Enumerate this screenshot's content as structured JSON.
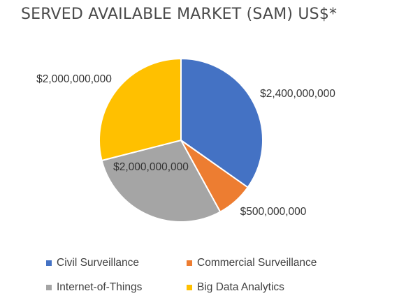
{
  "chart_data": {
    "type": "pie",
    "title": "SERVED AVAILABLE MARKET (SAM) US$*",
    "categories": [
      "Civil Surveillance",
      "Commercial Surveillance",
      "Internet-of-Things",
      "Big Data Analytics"
    ],
    "values": [
      2400000000,
      500000000,
      2000000000,
      2000000000
    ],
    "data_labels": [
      "$2,400,000,000",
      "$500,000,000",
      "$2,000,000,000",
      "$2,000,000,000"
    ],
    "colors": [
      "#4472C4",
      "#ED7D31",
      "#A5A5A5",
      "#FFC000"
    ],
    "legend_position": "bottom",
    "start_angle": "12 o'clock",
    "direction": "clockwise"
  }
}
